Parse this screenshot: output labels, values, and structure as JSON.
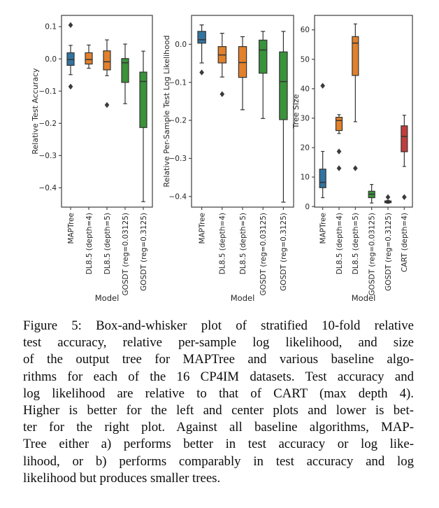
{
  "figure": {
    "caption_lines": [
      "Figure 5: Box-and-whisker plot of stratified 10-fold relative",
      "test accuracy, relative per-sample log likelihood, and size",
      "of the output tree for MAPTree and various baseline algo-",
      "rithms for each of the 16 CP4IM datasets. Test accuracy and",
      "log likelihood are relative to that of CART (max depth 4).",
      "Higher is better for the left and center plots and lower is bet-",
      "ter for the right plot. Against all baseline algorithms, MAP-",
      "Tree either a) performs better in test accuracy or log like-",
      "lihood, or b) performs comparably in test accuracy and log",
      "likelihood but produces smaller trees."
    ]
  },
  "chart_style": {
    "spine": "#4a4a4a",
    "edge": "#333333",
    "flier": "#3a3a3a",
    "text": "#262626",
    "palette": {
      "blue": "#3274a1",
      "orange": "#e1812c",
      "green": "#3a923a",
      "red": "#c03d3e"
    }
  },
  "chart_data": [
    {
      "type": "box",
      "title": "",
      "xlabel": "Model",
      "ylabel": "Relative Test Accuracy",
      "ylim": [
        -0.46,
        0.135
      ],
      "yticks": [
        0.1,
        0.0,
        -0.1,
        -0.2,
        -0.3,
        -0.4
      ],
      "ytick_labels": [
        "0.1",
        "0.0",
        "−0.1",
        "−0.2",
        "−0.3",
        "−0.4"
      ],
      "categories": [
        "MAPTree",
        "DL8.5 (depth=4)",
        "DL8.5 (depth=5)",
        "GOSDT (reg=0.03125)",
        "GOSDT (reg=0.3125)"
      ],
      "colors": [
        "#3274a1",
        "#e1812c",
        "#e1812c",
        "#3a923a",
        "#3a923a"
      ],
      "boxes": [
        {
          "whislo": -0.049,
          "q1": -0.02,
          "med": -0.002,
          "q3": 0.019,
          "whishi": 0.042,
          "fliers": [
            0.105,
            -0.086
          ]
        },
        {
          "whislo": -0.029,
          "q1": -0.016,
          "med": -0.002,
          "q3": 0.019,
          "whishi": 0.043,
          "fliers": []
        },
        {
          "whislo": -0.052,
          "q1": -0.034,
          "med": -0.009,
          "q3": 0.025,
          "whishi": 0.059,
          "fliers": [
            -0.143
          ]
        },
        {
          "whislo": -0.139,
          "q1": -0.073,
          "med": -0.012,
          "q3": 0.001,
          "whishi": 0.046,
          "fliers": []
        },
        {
          "whislo": -0.443,
          "q1": -0.213,
          "med": -0.07,
          "q3": -0.041,
          "whishi": 0.024,
          "fliers": []
        }
      ]
    },
    {
      "type": "box",
      "title": "",
      "xlabel": "Model",
      "ylabel": "Relative Per-Sample Test Log Likelihood",
      "ylim": [
        -0.428,
        0.076
      ],
      "yticks": [
        0.0,
        -0.1,
        -0.2,
        -0.3,
        -0.4
      ],
      "ytick_labels": [
        "0.0",
        "−0.1",
        "−0.2",
        "−0.3",
        "−0.4"
      ],
      "categories": [
        "MAPTree",
        "DL8.5 (depth=4)",
        "DL8.5 (depth=5)",
        "GOSDT (reg=0.03125)",
        "GOSDT (reg=0.3125)"
      ],
      "colors": [
        "#3274a1",
        "#e1812c",
        "#e1812c",
        "#3a923a",
        "#3a923a"
      ],
      "boxes": [
        {
          "whislo": -0.049,
          "q1": 0.003,
          "med": 0.012,
          "q3": 0.034,
          "whishi": 0.051,
          "fliers": [
            -0.074
          ]
        },
        {
          "whislo": -0.086,
          "q1": -0.049,
          "med": -0.028,
          "q3": -0.006,
          "whishi": 0.029,
          "fliers": [
            -0.131
          ]
        },
        {
          "whislo": -0.172,
          "q1": -0.087,
          "med": -0.048,
          "q3": -0.006,
          "whishi": 0.02,
          "fliers": []
        },
        {
          "whislo": -0.195,
          "q1": -0.076,
          "med": -0.015,
          "q3": 0.011,
          "whishi": 0.034,
          "fliers": []
        },
        {
          "whislo": -0.415,
          "q1": -0.198,
          "med": -0.098,
          "q3": -0.02,
          "whishi": 0.034,
          "fliers": []
        }
      ]
    },
    {
      "type": "box",
      "title": "",
      "xlabel": "Model",
      "ylabel": "Tree Size",
      "ylim": [
        -0.2,
        64.9
      ],
      "yticks": [
        0,
        10,
        20,
        30,
        40,
        50,
        60
      ],
      "ytick_labels": [
        "0",
        "10",
        "20",
        "30",
        "40",
        "50",
        "60"
      ],
      "categories": [
        "MAPTree",
        "DL8.5 (depth=4)",
        "DL8.5 (depth=5)",
        "GOSDT (reg=0.03125)",
        "GOSDT (reg=0.3125)",
        "CART (depth=4)"
      ],
      "colors": [
        "#3274a1",
        "#e1812c",
        "#e1812c",
        "#3a923a",
        "#3a923a",
        "#c03d3e"
      ],
      "boxes": [
        {
          "whislo": 3.0,
          "q1": 6.4,
          "med": 8.2,
          "q3": 12.7,
          "whishi": 18.7,
          "fliers": [
            41
          ]
        },
        {
          "whislo": 24.8,
          "q1": 25.8,
          "med": 29.2,
          "q3": 30.3,
          "whishi": 31.2,
          "fliers": [
            18.7,
            13
          ]
        },
        {
          "whislo": 28.8,
          "q1": 44.5,
          "med": 55.5,
          "q3": 57.7,
          "whishi": 62,
          "fliers": [
            13
          ]
        },
        {
          "whislo": 1.2,
          "q1": 3.0,
          "med": 4.2,
          "q3": 5.2,
          "whishi": 7.5,
          "fliers": []
        },
        {
          "whislo": 1.1,
          "q1": 1.3,
          "med": 1.6,
          "q3": 1.9,
          "whishi": 2.1,
          "fliers": [
            3.2
          ]
        },
        {
          "whislo": 13.6,
          "q1": 18.6,
          "med": 23.8,
          "q3": 27.4,
          "whishi": 31.0,
          "fliers": [
            3.2
          ]
        }
      ]
    }
  ]
}
